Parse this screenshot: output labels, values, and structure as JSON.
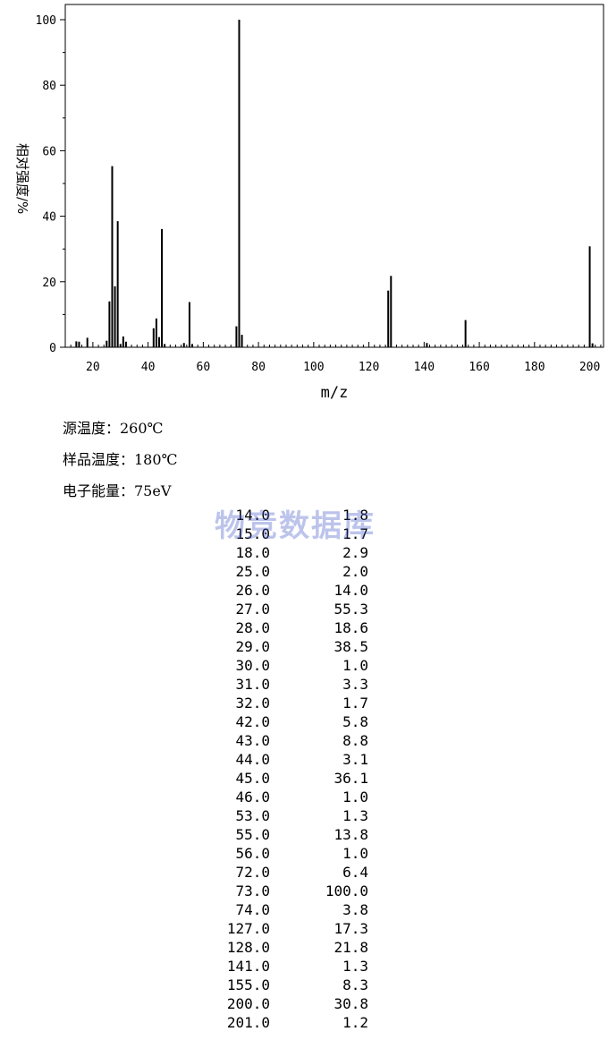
{
  "chart_data": {
    "type": "bar",
    "xlabel": "m/z",
    "ylabel": "相对强度/%",
    "xlim": [
      10,
      205
    ],
    "ylim": [
      0,
      100
    ],
    "x_ticks": [
      "20",
      "40",
      "60",
      "80",
      "100",
      "120",
      "140",
      "160",
      "180",
      "200"
    ],
    "y_ticks": [
      "0",
      "20",
      "40",
      "60",
      "80",
      "100"
    ],
    "peaks": [
      {
        "mz": 14,
        "ab": 1.8
      },
      {
        "mz": 15,
        "ab": 1.7
      },
      {
        "mz": 18,
        "ab": 2.9
      },
      {
        "mz": 25,
        "ab": 2.0
      },
      {
        "mz": 26,
        "ab": 14.0
      },
      {
        "mz": 27,
        "ab": 55.3
      },
      {
        "mz": 28,
        "ab": 18.6
      },
      {
        "mz": 29,
        "ab": 38.5
      },
      {
        "mz": 30,
        "ab": 1.0
      },
      {
        "mz": 31,
        "ab": 3.3
      },
      {
        "mz": 32,
        "ab": 1.7
      },
      {
        "mz": 42,
        "ab": 5.8
      },
      {
        "mz": 43,
        "ab": 8.8
      },
      {
        "mz": 44,
        "ab": 3.1
      },
      {
        "mz": 45,
        "ab": 36.1
      },
      {
        "mz": 46,
        "ab": 1.0
      },
      {
        "mz": 53,
        "ab": 1.3
      },
      {
        "mz": 55,
        "ab": 13.8
      },
      {
        "mz": 56,
        "ab": 1.0
      },
      {
        "mz": 72,
        "ab": 6.4
      },
      {
        "mz": 73,
        "ab": 100.0
      },
      {
        "mz": 74,
        "ab": 3.8
      },
      {
        "mz": 127,
        "ab": 17.3
      },
      {
        "mz": 128,
        "ab": 21.8
      },
      {
        "mz": 141,
        "ab": 1.3
      },
      {
        "mz": 155,
        "ab": 8.3
      },
      {
        "mz": 200,
        "ab": 30.8
      },
      {
        "mz": 201,
        "ab": 1.2
      }
    ]
  },
  "conditions": {
    "source_temp": "源温度：260℃",
    "sample_temp": "样品温度：180℃",
    "electron_energy": "电子能量：75eV"
  },
  "watermark": "物竞数据库",
  "table": [
    {
      "mz": "14.0",
      "ab": "1.8"
    },
    {
      "mz": "15.0",
      "ab": "1.7"
    },
    {
      "mz": "18.0",
      "ab": "2.9"
    },
    {
      "mz": "25.0",
      "ab": "2.0"
    },
    {
      "mz": "26.0",
      "ab": "14.0"
    },
    {
      "mz": "27.0",
      "ab": "55.3"
    },
    {
      "mz": "28.0",
      "ab": "18.6"
    },
    {
      "mz": "29.0",
      "ab": "38.5"
    },
    {
      "mz": "30.0",
      "ab": "1.0"
    },
    {
      "mz": "31.0",
      "ab": "3.3"
    },
    {
      "mz": "32.0",
      "ab": "1.7"
    },
    {
      "mz": "42.0",
      "ab": "5.8"
    },
    {
      "mz": "43.0",
      "ab": "8.8"
    },
    {
      "mz": "44.0",
      "ab": "3.1"
    },
    {
      "mz": "45.0",
      "ab": "36.1"
    },
    {
      "mz": "46.0",
      "ab": "1.0"
    },
    {
      "mz": "53.0",
      "ab": "1.3"
    },
    {
      "mz": "55.0",
      "ab": "13.8"
    },
    {
      "mz": "56.0",
      "ab": "1.0"
    },
    {
      "mz": "72.0",
      "ab": "6.4"
    },
    {
      "mz": "73.0",
      "ab": "100.0"
    },
    {
      "mz": "74.0",
      "ab": "3.8"
    },
    {
      "mz": "127.0",
      "ab": "17.3"
    },
    {
      "mz": "128.0",
      "ab": "21.8"
    },
    {
      "mz": "141.0",
      "ab": "1.3"
    },
    {
      "mz": "155.0",
      "ab": "8.3"
    },
    {
      "mz": "200.0",
      "ab": "30.8"
    },
    {
      "mz": "201.0",
      "ab": "1.2"
    }
  ]
}
